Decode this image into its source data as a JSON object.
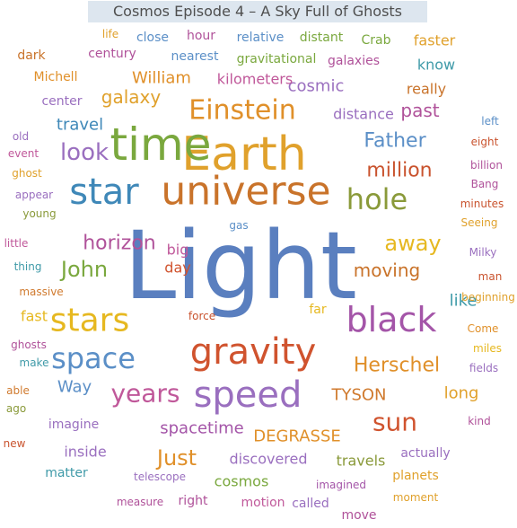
{
  "title": "Cosmos Episode 4 – A Sky Full of Ghosts",
  "words": [
    {
      "text": "Light",
      "color": "#5a7fbf"
    },
    {
      "text": "Earth",
      "color": "#e0a12c"
    },
    {
      "text": "time",
      "color": "#7aa83e"
    },
    {
      "text": "universe",
      "color": "#c9732a"
    },
    {
      "text": "star",
      "color": "#3f88b8"
    },
    {
      "text": "gravity",
      "color": "#d0532e"
    },
    {
      "text": "speed",
      "color": "#9a6fbf"
    },
    {
      "text": "black",
      "color": "#a455a8"
    },
    {
      "text": "stars",
      "color": "#e6b820"
    },
    {
      "text": "Einstein",
      "color": "#e0902a"
    },
    {
      "text": "hole",
      "color": "#8a9a3a"
    },
    {
      "text": "space",
      "color": "#5b8fc7"
    },
    {
      "text": "sun",
      "color": "#d0532e"
    },
    {
      "text": "years",
      "color": "#c0589a"
    },
    {
      "text": "look",
      "color": "#9a6fbf"
    },
    {
      "text": "away",
      "color": "#e6b820"
    },
    {
      "text": "John",
      "color": "#7aa83e"
    },
    {
      "text": "Just",
      "color": "#e0902a"
    },
    {
      "text": "Herschel",
      "color": "#e0902a"
    },
    {
      "text": "million",
      "color": "#c9532e"
    },
    {
      "text": "Father",
      "color": "#5b8fc7"
    },
    {
      "text": "horizon",
      "color": "#b0529a"
    },
    {
      "text": "moving",
      "color": "#c9732a"
    },
    {
      "text": "DEGRASSE",
      "color": "#e0902a"
    },
    {
      "text": "TYSON",
      "color": "#d07a2e"
    },
    {
      "text": "galaxy",
      "color": "#e0a12c"
    },
    {
      "text": "past",
      "color": "#b0529a"
    },
    {
      "text": "like",
      "color": "#3f9aa8"
    },
    {
      "text": "cosmic",
      "color": "#9a6fbf"
    },
    {
      "text": "spacetime",
      "color": "#a455a8"
    },
    {
      "text": "travel",
      "color": "#3f88b8"
    },
    {
      "text": "long",
      "color": "#e0a12c"
    },
    {
      "text": "Way",
      "color": "#5b8fc7"
    },
    {
      "text": "William",
      "color": "#e0902a"
    },
    {
      "text": "kilometers",
      "color": "#c0589a"
    },
    {
      "text": "distance",
      "color": "#9a6fbf"
    },
    {
      "text": "big",
      "color": "#c0589a"
    },
    {
      "text": "day",
      "color": "#d0532e"
    },
    {
      "text": "inside",
      "color": "#9a6fbf"
    },
    {
      "text": "discovered",
      "color": "#9a6fbf"
    },
    {
      "text": "travels",
      "color": "#8a9a3a"
    },
    {
      "text": "cosmos",
      "color": "#7aa83e"
    },
    {
      "text": "fast",
      "color": "#e6b820"
    },
    {
      "text": "really",
      "color": "#c9732a"
    },
    {
      "text": "center",
      "color": "#9a6fbf"
    },
    {
      "text": "galaxies",
      "color": "#b0529a"
    },
    {
      "text": "know",
      "color": "#3f9aa8"
    },
    {
      "text": "dark",
      "color": "#c9732a"
    },
    {
      "text": "faster",
      "color": "#e0a12c"
    },
    {
      "text": "hour",
      "color": "#b0529a"
    },
    {
      "text": "imagine",
      "color": "#9a6fbf"
    },
    {
      "text": "matter",
      "color": "#3f9aa8"
    },
    {
      "text": "actually",
      "color": "#9a6fbf"
    },
    {
      "text": "planets",
      "color": "#e0a12c"
    },
    {
      "text": "right",
      "color": "#b0529a"
    },
    {
      "text": "motion",
      "color": "#c0589a"
    },
    {
      "text": "called",
      "color": "#9a6fbf"
    },
    {
      "text": "move",
      "color": "#b0529a"
    },
    {
      "text": "Michell",
      "color": "#e0902a"
    },
    {
      "text": "close",
      "color": "#5b8fc7"
    },
    {
      "text": "relative",
      "color": "#5b8fc7"
    },
    {
      "text": "distant",
      "color": "#7aa83e"
    },
    {
      "text": "Crab",
      "color": "#7aa83e"
    },
    {
      "text": "life",
      "color": "#e0a12c"
    },
    {
      "text": "century",
      "color": "#b0529a"
    },
    {
      "text": "nearest",
      "color": "#5b8fc7"
    },
    {
      "text": "gravitational",
      "color": "#7aa83e"
    },
    {
      "text": "old",
      "color": "#9a6fbf"
    },
    {
      "text": "event",
      "color": "#c0589a"
    },
    {
      "text": "ghost",
      "color": "#e0a12c"
    },
    {
      "text": "appear",
      "color": "#9a6fbf"
    },
    {
      "text": "young",
      "color": "#8a9a3a"
    },
    {
      "text": "little",
      "color": "#c0589a"
    },
    {
      "text": "thing",
      "color": "#3f9aa8"
    },
    {
      "text": "massive",
      "color": "#d07a2e"
    },
    {
      "text": "ghosts",
      "color": "#b0529a"
    },
    {
      "text": "make",
      "color": "#3f9aa8"
    },
    {
      "text": "able",
      "color": "#d07a2e"
    },
    {
      "text": "ago",
      "color": "#8a9a3a"
    },
    {
      "text": "new",
      "color": "#c9532e"
    },
    {
      "text": "telescope",
      "color": "#9a6fbf"
    },
    {
      "text": "measure",
      "color": "#b0529a"
    },
    {
      "text": "imagined",
      "color": "#a455a8"
    },
    {
      "text": "moment",
      "color": "#e0a12c"
    },
    {
      "text": "left",
      "color": "#5b8fc7"
    },
    {
      "text": "eight",
      "color": "#c9532e"
    },
    {
      "text": "billion",
      "color": "#b0529a"
    },
    {
      "text": "Bang",
      "color": "#b0529a"
    },
    {
      "text": "minutes",
      "color": "#c9532e"
    },
    {
      "text": "Seeing",
      "color": "#e0a12c"
    },
    {
      "text": "Milky",
      "color": "#9a6fbf"
    },
    {
      "text": "man",
      "color": "#c9532e"
    },
    {
      "text": "beginning",
      "color": "#e0a12c"
    },
    {
      "text": "Come",
      "color": "#e0902a"
    },
    {
      "text": "miles",
      "color": "#e6b820"
    },
    {
      "text": "fields",
      "color": "#9a6fbf"
    },
    {
      "text": "kind",
      "color": "#b0529a"
    },
    {
      "text": "gas",
      "color": "#5b8fc7"
    },
    {
      "text": "force",
      "color": "#c9532e"
    },
    {
      "text": "far",
      "color": "#e6b820"
    }
  ]
}
